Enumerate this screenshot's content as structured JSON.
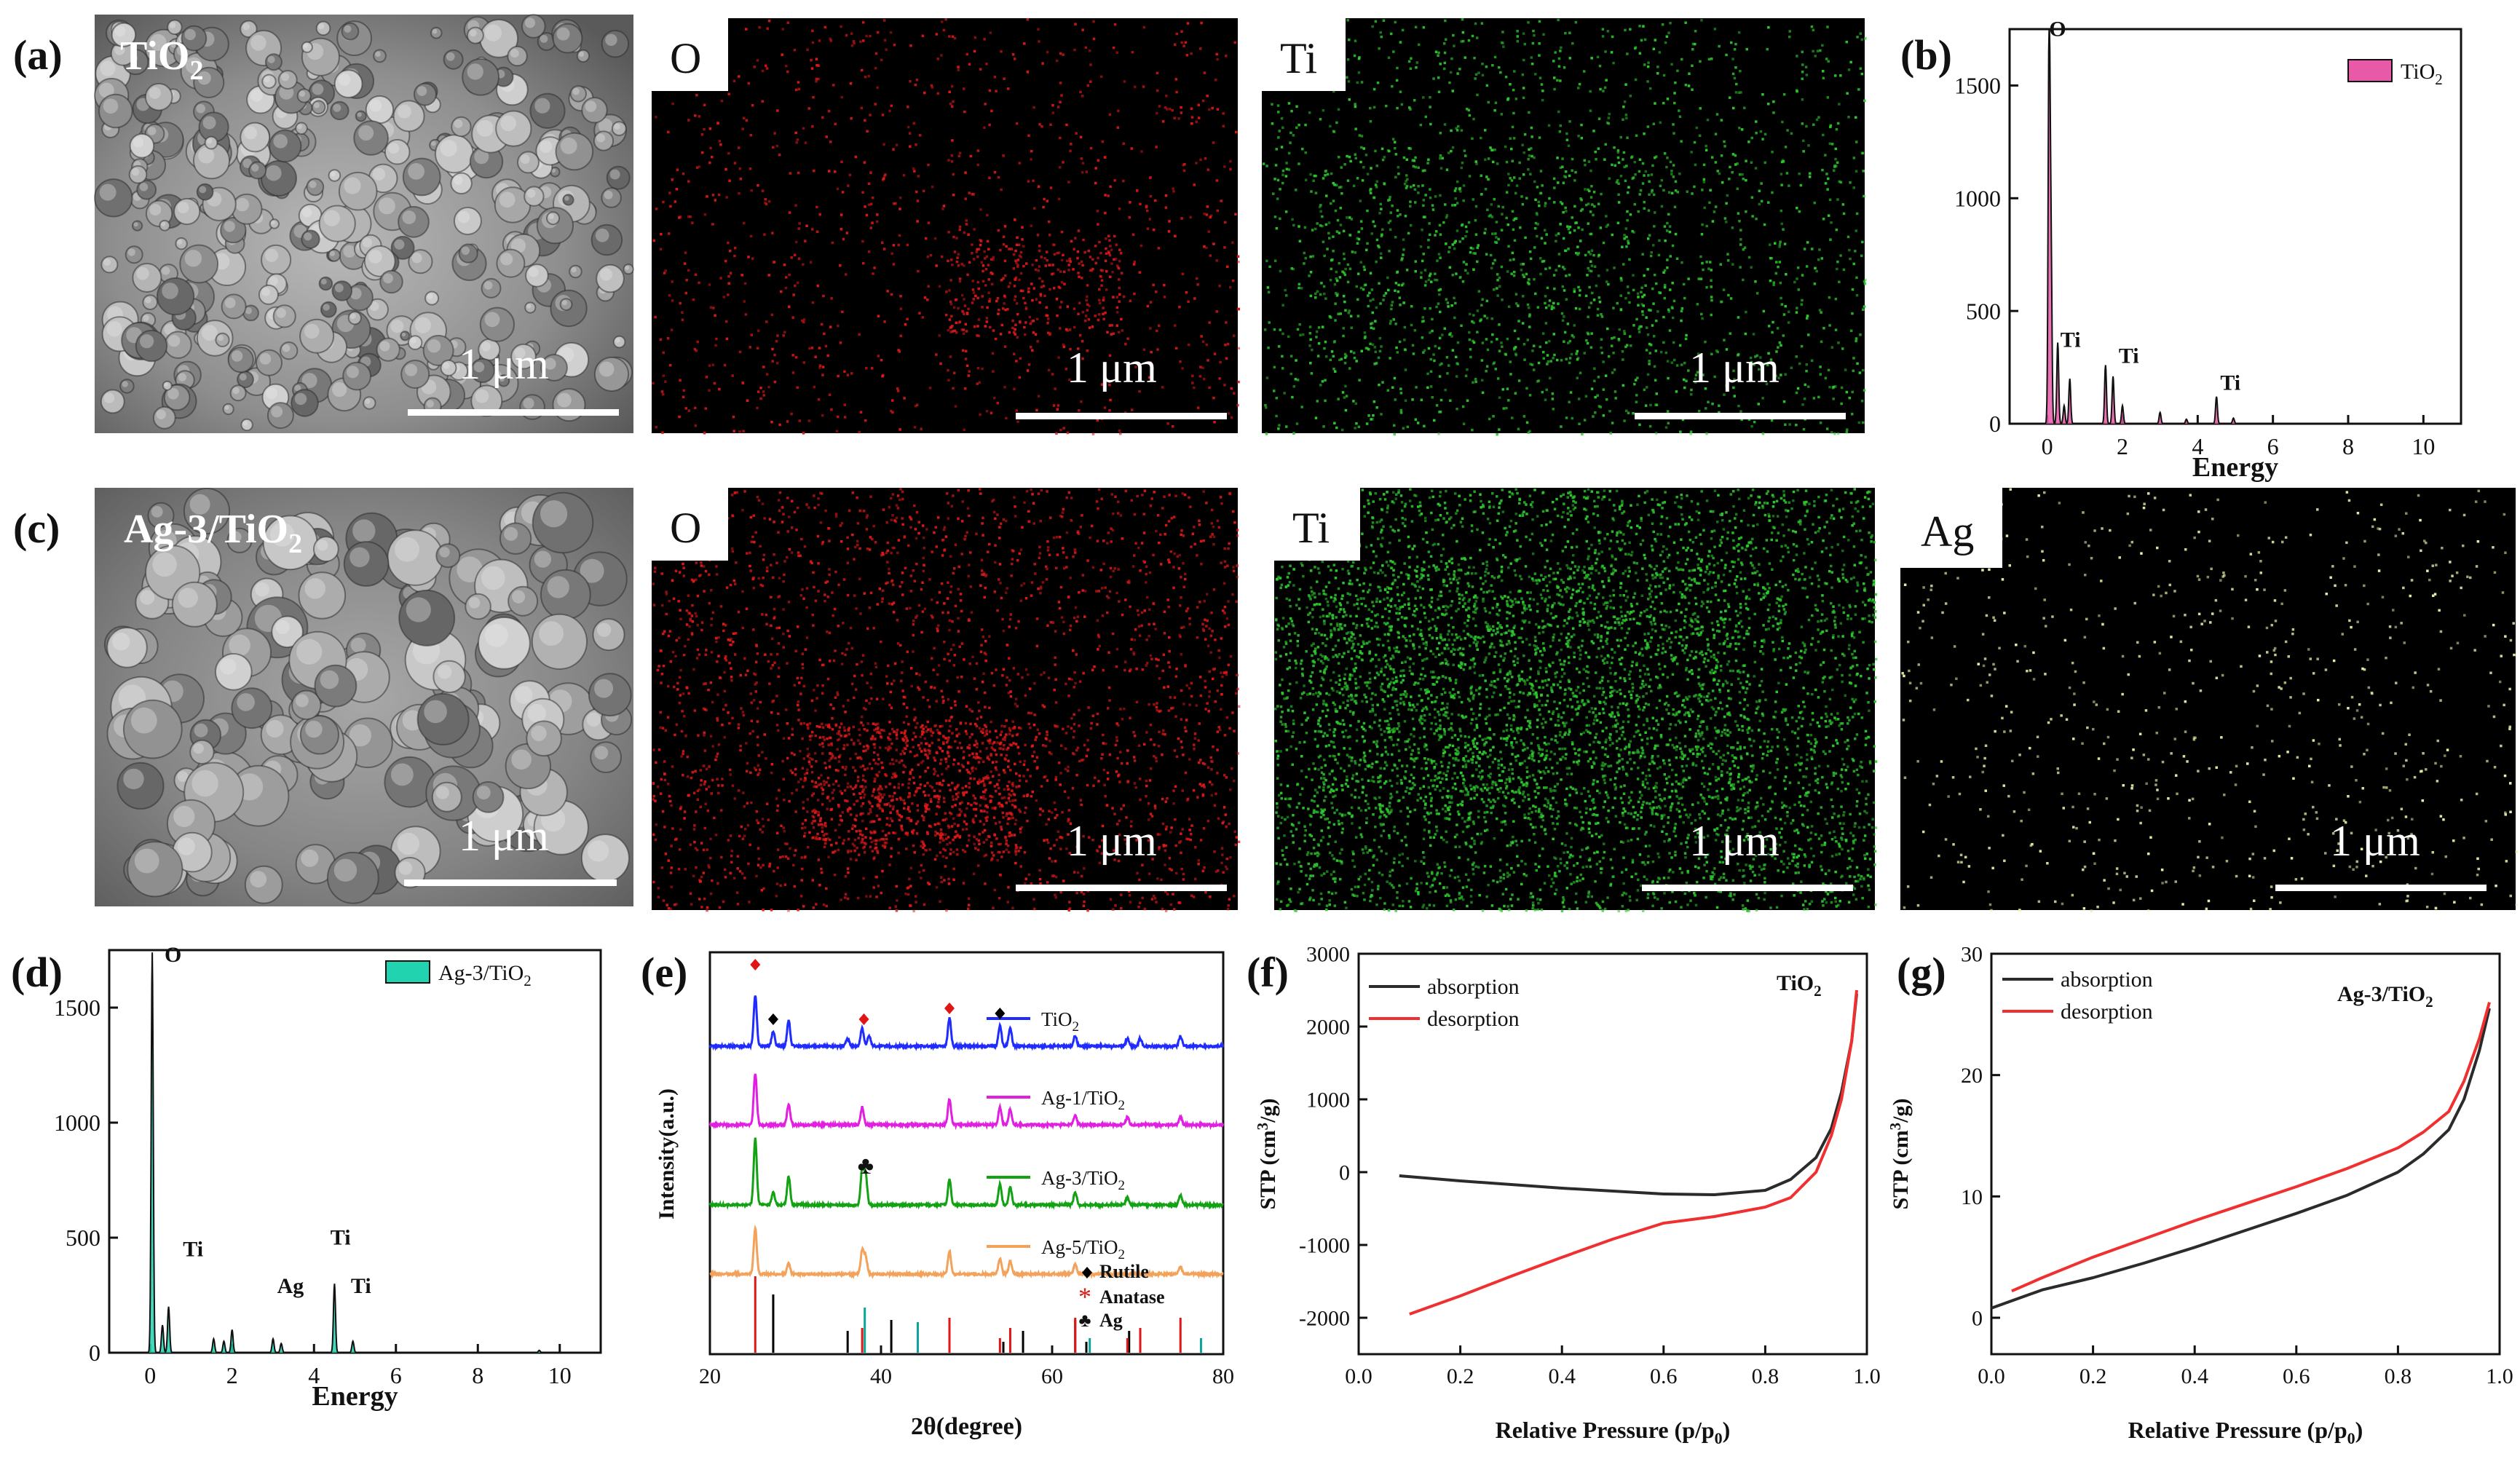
{
  "panel_labels": {
    "a": "(a)",
    "b": "(b)",
    "c": "(c)",
    "d": "(d)",
    "e": "(e)",
    "f": "(f)",
    "g": "(g)"
  },
  "row_a": {
    "sem_label": "TiO",
    "sem_label_sub": "2",
    "map_o_label": "O",
    "map_ti_label": "Ti",
    "scale_bar": "1 μm"
  },
  "row_c": {
    "sem_label": "Ag-3/TiO",
    "sem_label_sub": "2",
    "map_o_label": "O",
    "map_ti_label": "Ti",
    "map_ag_label": "Ag",
    "scale_bar": "1 μm"
  },
  "colors": {
    "eds_b": "#e85aa8",
    "eds_d": "#22d3b0",
    "xrd_tio2": "#1f2bff",
    "xrd_ag1": "#e11fe0",
    "xrd_ag3": "#13a213",
    "xrd_ag5": "#f2a25a",
    "rutile": "#000000",
    "anatase": "#e01515",
    "ag": "#0aa598",
    "absorption": "#2b2b2b",
    "desorption": "#f03030",
    "map_o": "#e01818",
    "map_ti": "#2ec92e",
    "map_ag": "#e6f2a8"
  },
  "chart_data": [
    {
      "id": "b",
      "type": "line",
      "title": "",
      "xlabel": "Energy",
      "ylabel": "",
      "xlim": [
        -1,
        11
      ],
      "ylim": [
        0,
        1750
      ],
      "xticks": [
        "0",
        "2",
        "4",
        "6",
        "8",
        "10"
      ],
      "yticks": [
        "0",
        "500",
        "1000",
        "1500"
      ],
      "legend": [
        "TiO",
        "2"
      ],
      "series": [
        {
          "name": "TiO2",
          "peaks": [
            [
              0.05,
              1740
            ],
            [
              0.1,
              800
            ],
            [
              0.28,
              360
            ],
            [
              0.45,
              80
            ],
            [
              0.6,
              200
            ],
            [
              1.55,
              260
            ],
            [
              1.75,
              210
            ],
            [
              2.0,
              80
            ],
            [
              3.0,
              50
            ],
            [
              3.7,
              20
            ],
            [
              4.5,
              120
            ],
            [
              4.95,
              25
            ]
          ]
        }
      ],
      "annotations": [
        {
          "text": "O",
          "x": 0.05,
          "y": 1720
        },
        {
          "text": "Ti",
          "x": 0.35,
          "y": 340
        },
        {
          "text": "Ti",
          "x": 1.9,
          "y": 270
        },
        {
          "text": "Ti",
          "x": 4.6,
          "y": 150
        }
      ]
    },
    {
      "id": "d",
      "type": "line",
      "title": "",
      "xlabel": "Energy",
      "ylabel": "",
      "xlim": [
        -1,
        11
      ],
      "ylim": [
        0,
        1750
      ],
      "xticks": [
        "0",
        "2",
        "4",
        "6",
        "8",
        "10"
      ],
      "yticks": [
        "0",
        "500",
        "1000",
        "1500"
      ],
      "legend": [
        "Ag-3/TiO",
        "2"
      ],
      "series": [
        {
          "name": "Ag-3/TiO2",
          "peaks": [
            [
              0.05,
              1740
            ],
            [
              0.3,
              120
            ],
            [
              0.45,
              200
            ],
            [
              1.55,
              60
            ],
            [
              1.8,
              50
            ],
            [
              2.0,
              100
            ],
            [
              3.0,
              60
            ],
            [
              3.2,
              40
            ],
            [
              4.5,
              300
            ],
            [
              4.95,
              50
            ],
            [
              9.5,
              10
            ]
          ]
        }
      ],
      "annotations": [
        {
          "text": "O",
          "x": 0.35,
          "y": 1700
        },
        {
          "text": "Ti",
          "x": 0.8,
          "y": 420
        },
        {
          "text": "Ag",
          "x": 3.1,
          "y": 260
        },
        {
          "text": "Ti",
          "x": 4.4,
          "y": 470
        },
        {
          "text": "Ti",
          "x": 4.9,
          "y": 260
        }
      ]
    },
    {
      "id": "e",
      "type": "line",
      "title": "",
      "xlabel": "2θ(degree)",
      "ylabel": "Intensity(a.u.)",
      "xlim": [
        20,
        80
      ],
      "xticks": [
        "20",
        "40",
        "60",
        "80"
      ],
      "series": [
        {
          "name": "TiO",
          "sub": "2",
          "color": "#1f2bff",
          "peaks": [
            [
              25.3,
              1.0
            ],
            [
              27.4,
              0.3
            ],
            [
              29.2,
              0.5
            ],
            [
              36.1,
              0.15
            ],
            [
              37.8,
              0.35
            ],
            [
              38.6,
              0.2
            ],
            [
              48.0,
              0.55
            ],
            [
              53.9,
              0.4
            ],
            [
              55.1,
              0.35
            ],
            [
              62.7,
              0.2
            ],
            [
              68.8,
              0.15
            ],
            [
              70.3,
              0.15
            ],
            [
              75.0,
              0.2
            ]
          ]
        },
        {
          "name": "Ag-1/TiO",
          "sub": "2",
          "color": "#e11fe0",
          "peaks": [
            [
              25.3,
              1.0
            ],
            [
              29.2,
              0.4
            ],
            [
              37.8,
              0.35
            ],
            [
              48.0,
              0.5
            ],
            [
              53.9,
              0.35
            ],
            [
              55.1,
              0.3
            ],
            [
              62.7,
              0.2
            ],
            [
              68.8,
              0.15
            ],
            [
              75.0,
              0.15
            ]
          ]
        },
        {
          "name": "Ag-3/TiO",
          "sub": "2",
          "color": "#13a213",
          "peaks": [
            [
              25.3,
              1.3
            ],
            [
              27.4,
              0.25
            ],
            [
              29.2,
              0.55
            ],
            [
              37.8,
              0.7
            ],
            [
              38.2,
              0.6
            ],
            [
              48.0,
              0.5
            ],
            [
              53.9,
              0.4
            ],
            [
              55.1,
              0.35
            ],
            [
              62.7,
              0.25
            ],
            [
              68.8,
              0.15
            ],
            [
              75.0,
              0.2
            ]
          ]
        },
        {
          "name": "Ag-5/TiO",
          "sub": "2",
          "color": "#f2a25a",
          "peaks": [
            [
              25.3,
              0.9
            ],
            [
              29.2,
              0.2
            ],
            [
              37.8,
              0.45
            ],
            [
              38.2,
              0.35
            ],
            [
              48.0,
              0.45
            ],
            [
              53.9,
              0.3
            ],
            [
              55.1,
              0.25
            ],
            [
              62.7,
              0.2
            ],
            [
              75.0,
              0.15
            ]
          ]
        }
      ],
      "reference_lines": {
        "rutile": [
          27.4,
          36.1,
          41.2,
          54.3,
          56.6,
          62.7,
          64.0,
          69.0
        ],
        "anatase": [
          25.3,
          37.8,
          48.0,
          53.9,
          55.1,
          62.7,
          68.8,
          70.3,
          75.0
        ],
        "ag": [
          38.1,
          44.3,
          64.4,
          77.4
        ]
      },
      "legend": [
        "Rutile",
        "Anatase",
        "Ag"
      ]
    },
    {
      "id": "f",
      "type": "line",
      "title": "TiO",
      "title_sub": "2",
      "xlabel": "Relative Pressure (p/p",
      "xlabel_sub": "0",
      "ylabel": "STP (cm",
      "xlim": [
        0,
        1.0
      ],
      "ylim": [
        -2500,
        3000
      ],
      "xticks": [
        "0.0",
        "0.2",
        "0.4",
        "0.6",
        "0.8",
        "1.0"
      ],
      "yticks": [
        "-2000",
        "-1000",
        "0",
        "1000",
        "2000",
        "3000"
      ],
      "series": [
        {
          "name": "absorption",
          "x": [
            0.08,
            0.2,
            0.4,
            0.6,
            0.7,
            0.8,
            0.85,
            0.9,
            0.93,
            0.95,
            0.97,
            0.98
          ],
          "y": [
            -50,
            -120,
            -220,
            -300,
            -310,
            -250,
            -100,
            200,
            600,
            1100,
            1800,
            2450
          ]
        },
        {
          "name": "desorption",
          "x": [
            0.1,
            0.2,
            0.3,
            0.4,
            0.5,
            0.6,
            0.7,
            0.8,
            0.85,
            0.9,
            0.93,
            0.95,
            0.97,
            0.98
          ],
          "y": [
            -1950,
            -1700,
            -1430,
            -1170,
            -920,
            -700,
            -610,
            -480,
            -350,
            0,
            500,
            1000,
            1800,
            2500
          ]
        }
      ]
    },
    {
      "id": "g",
      "type": "line",
      "title": "Ag-3/TiO",
      "title_sub": "2",
      "xlabel": "Relative Pressure (p/p",
      "xlabel_sub": "0",
      "ylabel": "STP (cm",
      "xlim": [
        0,
        1.0
      ],
      "ylim": [
        -3,
        30
      ],
      "xticks": [
        "0.0",
        "0.2",
        "0.4",
        "0.6",
        "0.8",
        "1.0"
      ],
      "yticks": [
        "0",
        "10",
        "20",
        "30"
      ],
      "series": [
        {
          "name": "absorption",
          "x": [
            0.0,
            0.1,
            0.2,
            0.3,
            0.4,
            0.5,
            0.6,
            0.7,
            0.8,
            0.85,
            0.9,
            0.93,
            0.96,
            0.98
          ],
          "y": [
            0.8,
            2.3,
            3.3,
            4.5,
            5.8,
            7.2,
            8.6,
            10.1,
            12.0,
            13.5,
            15.5,
            18.0,
            22.0,
            25.5
          ]
        },
        {
          "name": "desorption",
          "x": [
            0.04,
            0.1,
            0.2,
            0.3,
            0.4,
            0.5,
            0.6,
            0.7,
            0.8,
            0.85,
            0.9,
            0.93,
            0.96,
            0.98
          ],
          "y": [
            2.2,
            3.3,
            5.0,
            6.5,
            8.0,
            9.4,
            10.8,
            12.3,
            14.0,
            15.3,
            17.0,
            19.5,
            23.0,
            26.0
          ]
        }
      ]
    }
  ]
}
